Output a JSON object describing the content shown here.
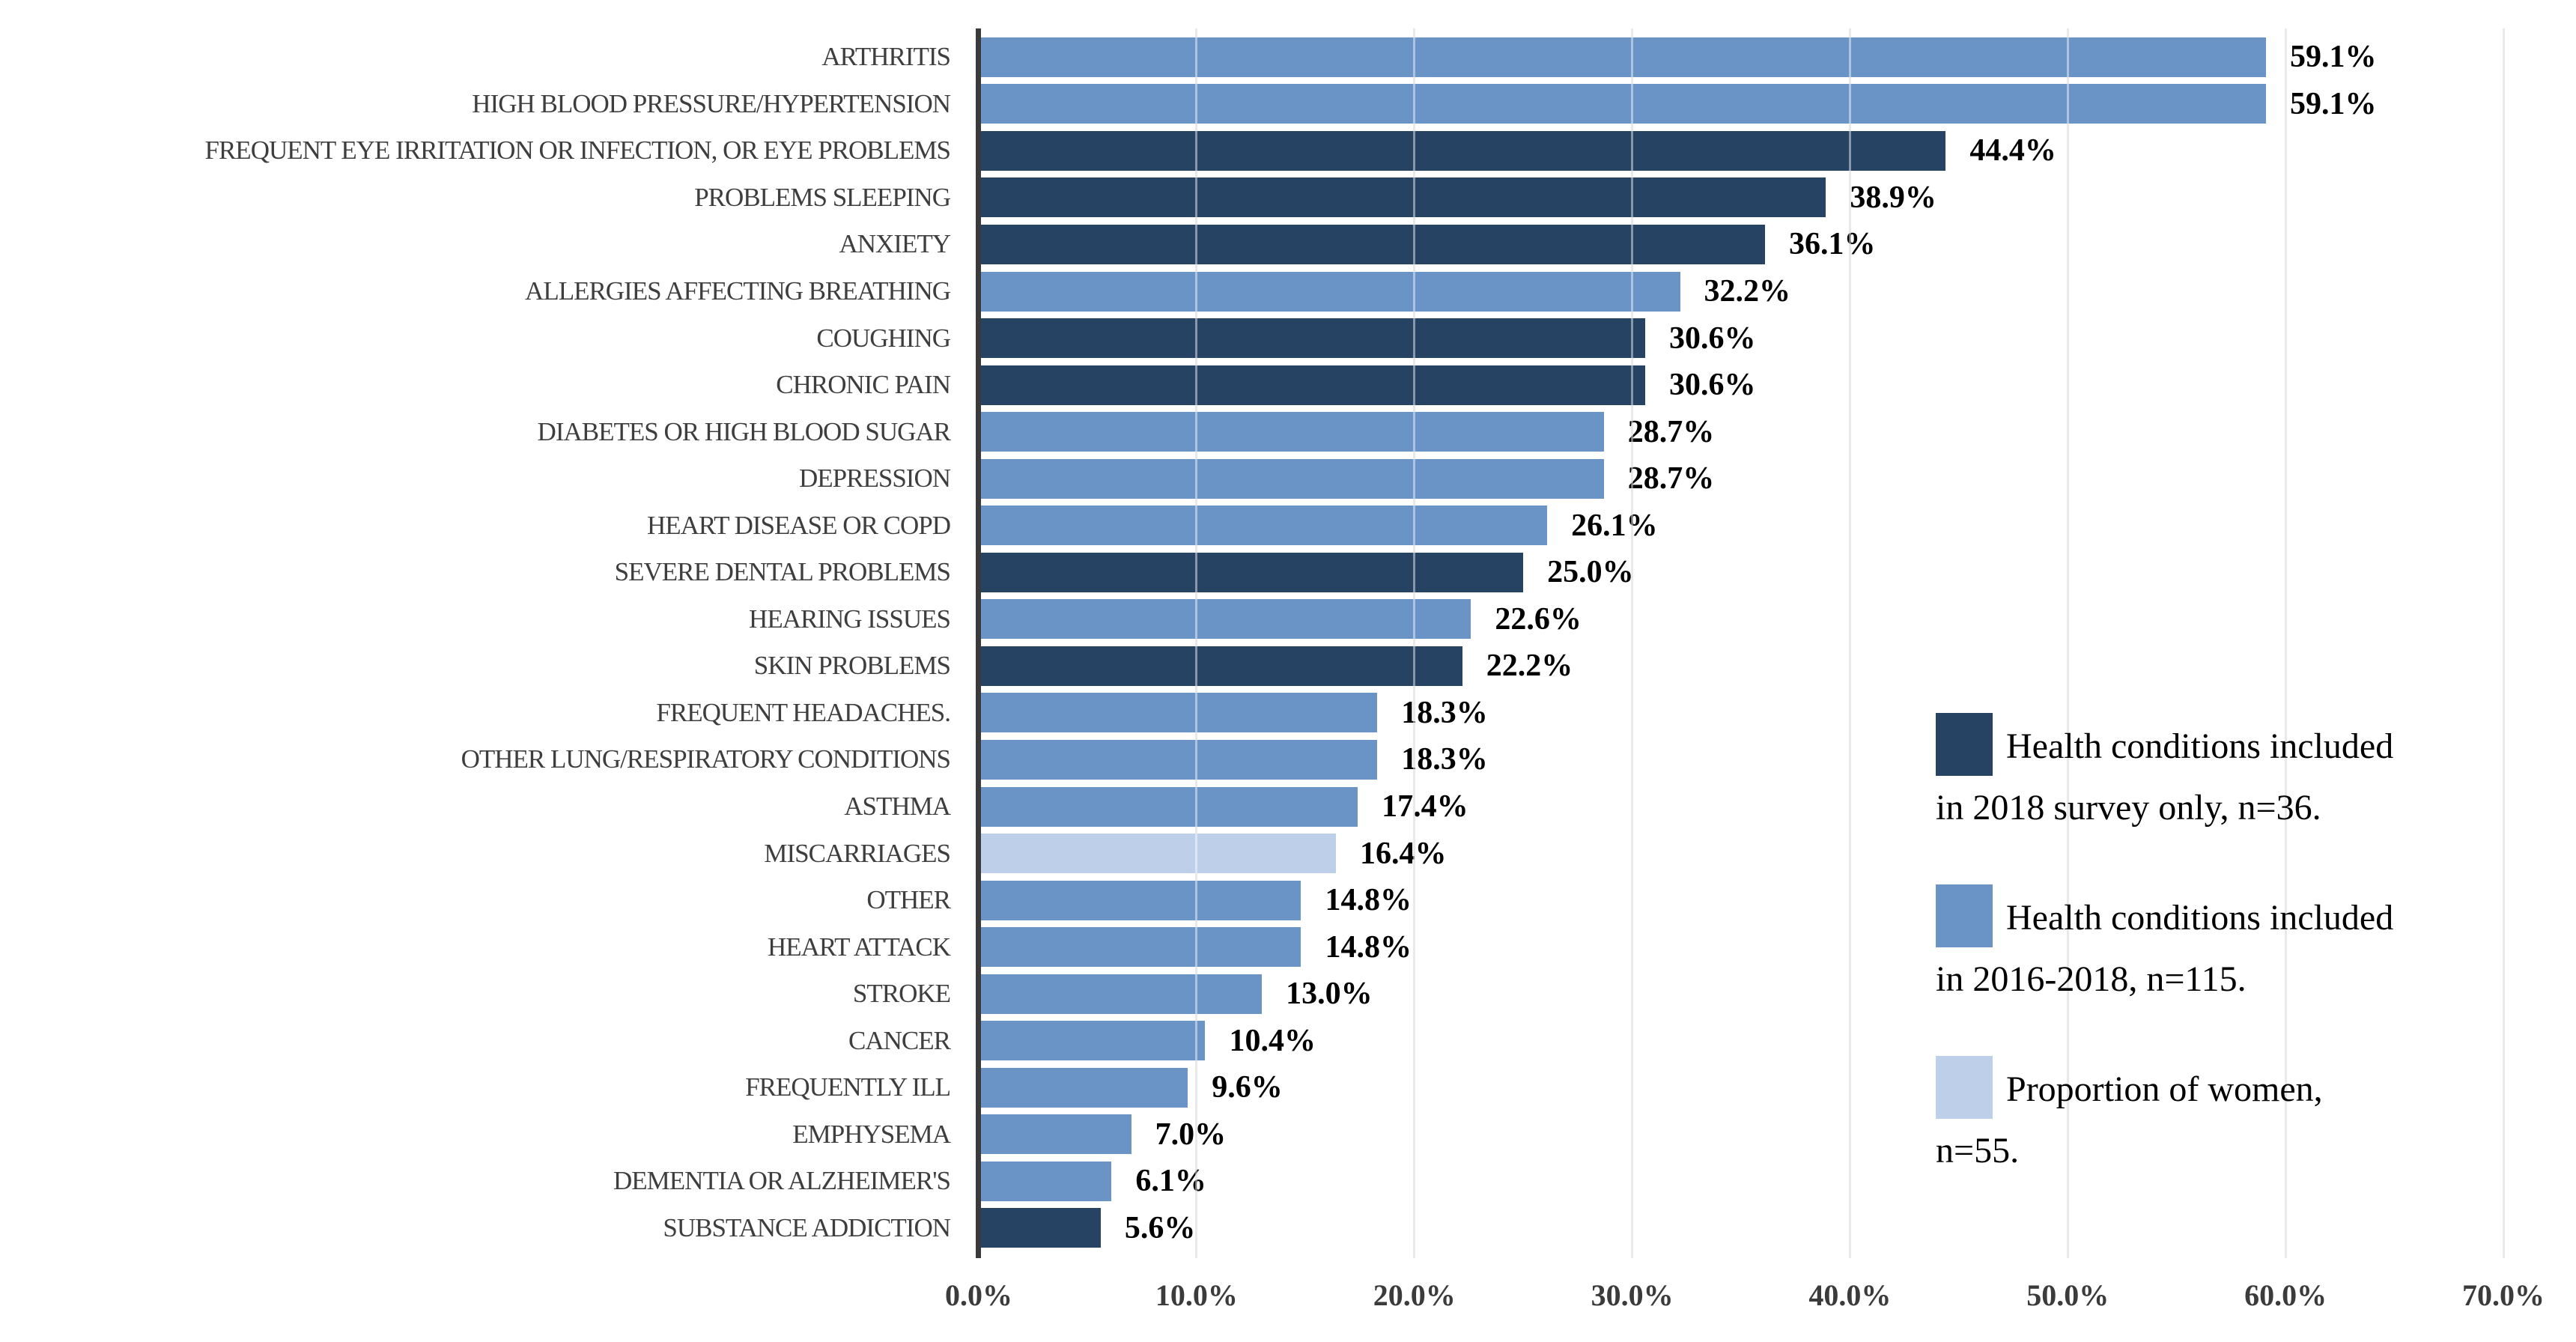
{
  "chart_data": {
    "type": "bar",
    "orientation": "horizontal",
    "title": "",
    "xlabel": "",
    "ylabel": "",
    "xlim": [
      0,
      70
    ],
    "grid": true,
    "x_ticks": [
      {
        "value": 0,
        "label": "0.0%"
      },
      {
        "value": 10,
        "label": "10.0%"
      },
      {
        "value": 20,
        "label": "20.0%"
      },
      {
        "value": 30,
        "label": "30.0%"
      },
      {
        "value": 40,
        "label": "40.0%"
      },
      {
        "value": 50,
        "label": "50.0%"
      },
      {
        "value": 60,
        "label": "60.0%"
      },
      {
        "value": 70,
        "label": "70.0%"
      }
    ],
    "groups": {
      "survey2018": {
        "color": "#274363",
        "legend_lines": [
          "Health conditions included",
          "in 2018 survey only, n=36."
        ]
      },
      "survey20162018": {
        "color": "#6B94C6",
        "legend_lines": [
          "Health conditions included",
          "in 2016-2018, n=115."
        ]
      },
      "women": {
        "color": "#BDCFE9",
        "legend_lines": [
          "Proportion of women,",
          "n=55."
        ]
      }
    },
    "legend_order": [
      "survey2018",
      "survey20162018",
      "women"
    ],
    "legend_position": "right-middle",
    "bars": [
      {
        "label": "ARTHRITIS",
        "value": 59.1,
        "display": "59.1%",
        "group": "survey20162018"
      },
      {
        "label": "HIGH BLOOD PRESSURE/HYPERTENSION",
        "value": 59.1,
        "display": "59.1%",
        "group": "survey20162018"
      },
      {
        "label": "FREQUENT EYE IRRITATION OR INFECTION, OR EYE PROBLEMS",
        "value": 44.4,
        "display": "44.4%",
        "group": "survey2018"
      },
      {
        "label": "PROBLEMS SLEEPING",
        "value": 38.9,
        "display": "38.9%",
        "group": "survey2018"
      },
      {
        "label": "ANXIETY",
        "value": 36.1,
        "display": "36.1%",
        "group": "survey2018"
      },
      {
        "label": "ALLERGIES AFFECTING BREATHING",
        "value": 32.2,
        "display": "32.2%",
        "group": "survey20162018"
      },
      {
        "label": "COUGHING",
        "value": 30.6,
        "display": "30.6%",
        "group": "survey2018"
      },
      {
        "label": "CHRONIC PAIN",
        "value": 30.6,
        "display": "30.6%",
        "group": "survey2018"
      },
      {
        "label": "DIABETES OR HIGH BLOOD SUGAR",
        "value": 28.7,
        "display": "28.7%",
        "group": "survey20162018"
      },
      {
        "label": "DEPRESSION",
        "value": 28.7,
        "display": "28.7%",
        "group": "survey20162018"
      },
      {
        "label": "HEART DISEASE OR COPD",
        "value": 26.1,
        "display": "26.1%",
        "group": "survey20162018"
      },
      {
        "label": "SEVERE DENTAL PROBLEMS",
        "value": 25.0,
        "display": "25.0%",
        "group": "survey2018"
      },
      {
        "label": "HEARING ISSUES",
        "value": 22.6,
        "display": "22.6%",
        "group": "survey20162018"
      },
      {
        "label": "SKIN PROBLEMS",
        "value": 22.2,
        "display": "22.2%",
        "group": "survey2018"
      },
      {
        "label": "FREQUENT HEADACHES.",
        "value": 18.3,
        "display": "18.3%",
        "group": "survey20162018"
      },
      {
        "label": "OTHER LUNG/RESPIRATORY CONDITIONS",
        "value": 18.3,
        "display": "18.3%",
        "group": "survey20162018"
      },
      {
        "label": "ASTHMA",
        "value": 17.4,
        "display": "17.4%",
        "group": "survey20162018"
      },
      {
        "label": "MISCARRIAGES",
        "value": 16.4,
        "display": "16.4%",
        "group": "women"
      },
      {
        "label": "OTHER",
        "value": 14.8,
        "display": "14.8%",
        "group": "survey20162018"
      },
      {
        "label": "HEART ATTACK",
        "value": 14.8,
        "display": "14.8%",
        "group": "survey20162018"
      },
      {
        "label": "STROKE",
        "value": 13.0,
        "display": "13.0%",
        "group": "survey20162018"
      },
      {
        "label": "CANCER",
        "value": 10.4,
        "display": "10.4%",
        "group": "survey20162018"
      },
      {
        "label": "FREQUENTLY ILL",
        "value": 9.6,
        "display": "9.6%",
        "group": "survey20162018"
      },
      {
        "label": "EMPHYSEMA",
        "value": 7.0,
        "display": "7.0%",
        "group": "survey20162018"
      },
      {
        "label": "DEMENTIA OR ALZHEIMER'S",
        "value": 6.1,
        "display": "6.1%",
        "group": "survey20162018"
      },
      {
        "label": "SUBSTANCE ADDICTION",
        "value": 5.6,
        "display": "5.6%",
        "group": "survey2018"
      }
    ]
  }
}
